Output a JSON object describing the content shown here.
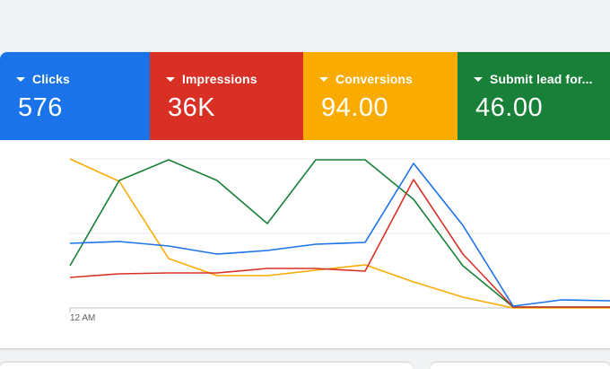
{
  "scorecards": [
    {
      "label": "Clicks",
      "value": "576",
      "color": "#1a73e8"
    },
    {
      "label": "Impressions",
      "value": "36K",
      "color": "#d93025"
    },
    {
      "label": "Conversions",
      "value": "94.00",
      "color": "#f9ab00"
    },
    {
      "label": "Submit lead for...",
      "value": "46.00",
      "color": "#188038"
    }
  ],
  "chart": {
    "x_label": "12 AM",
    "series_colors": [
      "#1a73e8",
      "#d93025",
      "#f9ab00",
      "#188038"
    ]
  }
}
